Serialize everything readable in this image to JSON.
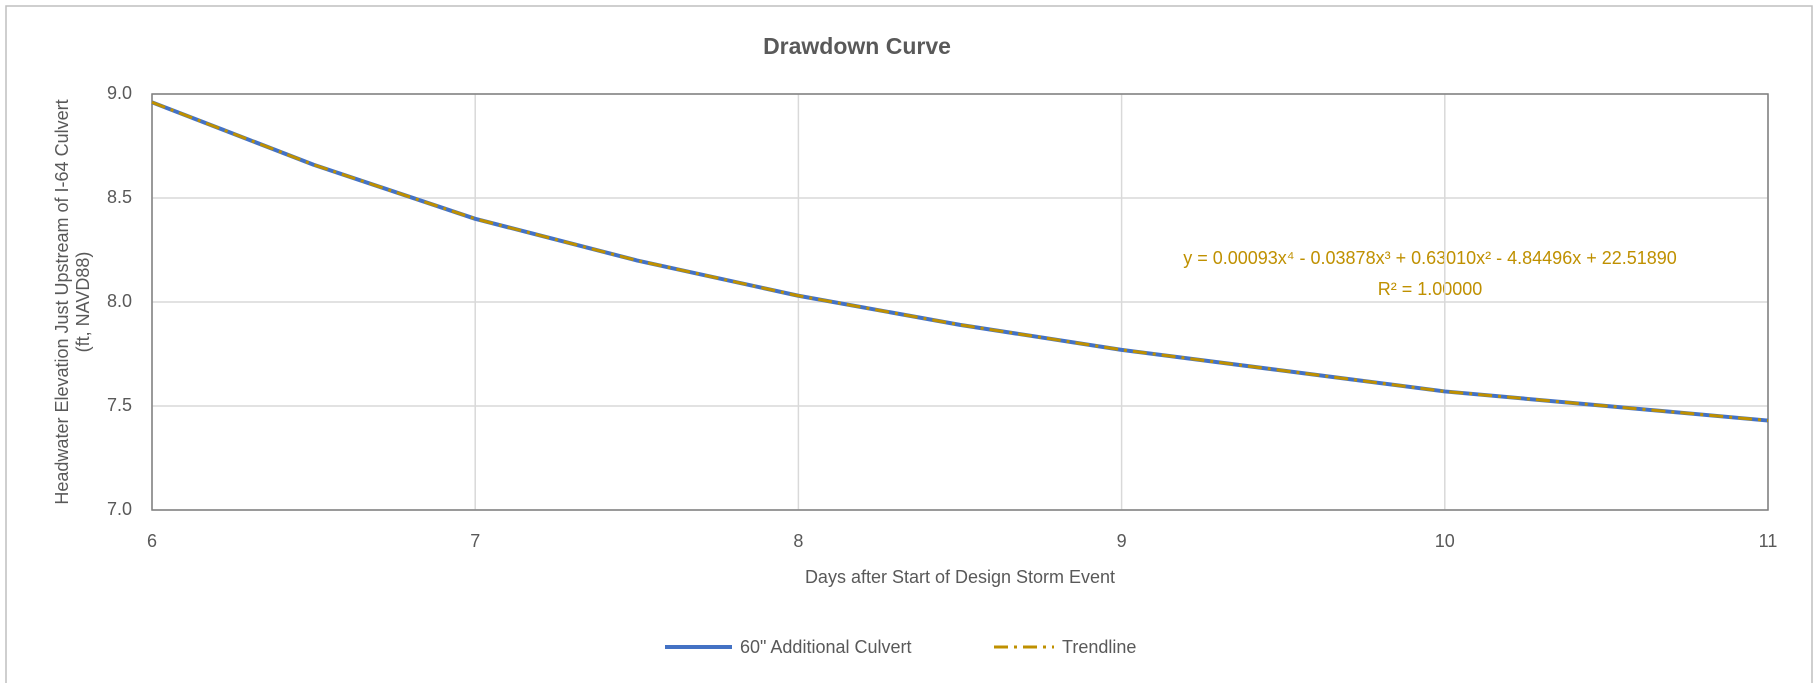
{
  "chart_data": {
    "type": "line",
    "title": "Drawdown Curve",
    "xlabel": "Days after Start of Design Storm Event",
    "ylabel": [
      "Headwater Elevation Just Upstream of I-64 Culvert",
      "(ft, NAVD88)"
    ],
    "x": [
      6,
      6.5,
      7,
      7.5,
      8,
      8.5,
      9,
      9.5,
      10,
      10.5,
      11
    ],
    "series": [
      {
        "name": "60\" Additional Culvert",
        "color": "#4472c4",
        "values": [
          8.96,
          8.66,
          8.4,
          8.2,
          8.03,
          7.89,
          7.77,
          7.67,
          7.57,
          7.5,
          7.43
        ]
      },
      {
        "name": "Trendline",
        "color": "#bf9000",
        "dash": "dash-dot",
        "values": [
          8.96,
          8.66,
          8.4,
          8.2,
          8.03,
          7.89,
          7.77,
          7.67,
          7.57,
          7.5,
          7.43
        ]
      }
    ],
    "annotations": [
      "y = 0.00093x⁴ - 0.03878x³ + 0.63010x² - 4.84496x + 22.51890",
      "R² = 1.00000"
    ],
    "xlim": [
      6,
      11
    ],
    "xticks": [
      6,
      7,
      8,
      9,
      10,
      11
    ],
    "ylim": [
      7,
      9
    ],
    "yticks": [
      {
        "value": 7,
        "label": "7.0"
      },
      {
        "value": 7.5,
        "label": "7.5"
      },
      {
        "value": 8,
        "label": "8.0"
      },
      {
        "value": 8.5,
        "label": "8.5"
      },
      {
        "value": 9,
        "label": "9.0"
      }
    ],
    "grid": true,
    "legend": "bottom"
  }
}
